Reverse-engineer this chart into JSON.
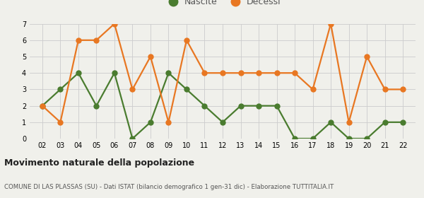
{
  "years": [
    2,
    3,
    4,
    5,
    6,
    7,
    8,
    9,
    10,
    11,
    12,
    13,
    14,
    15,
    16,
    17,
    18,
    19,
    20,
    21,
    22
  ],
  "nascite": [
    2,
    3,
    4,
    2,
    4,
    0,
    1,
    4,
    3,
    2,
    1,
    2,
    2,
    2,
    0,
    0,
    1,
    0,
    0,
    1,
    1
  ],
  "decessi": [
    2,
    1,
    6,
    6,
    7,
    3,
    5,
    1,
    6,
    4,
    4,
    4,
    4,
    4,
    4,
    3,
    7,
    1,
    5,
    3,
    3
  ],
  "nascite_color": "#4a7c2f",
  "decessi_color": "#e87722",
  "background_color": "#f0f0eb",
  "grid_color": "#cccccc",
  "ylim": [
    0,
    7
  ],
  "yticks": [
    0,
    1,
    2,
    3,
    4,
    5,
    6,
    7
  ],
  "title": "Movimento naturale della popolazione",
  "subtitle": "COMUNE DI LAS PLASSAS (SU) - Dati ISTAT (bilancio demografico 1 gen-31 dic) - Elaborazione TUTTITALIA.IT",
  "legend_nascite": "Nascite",
  "legend_decessi": "Decessi",
  "marker_size": 5,
  "line_width": 1.6
}
